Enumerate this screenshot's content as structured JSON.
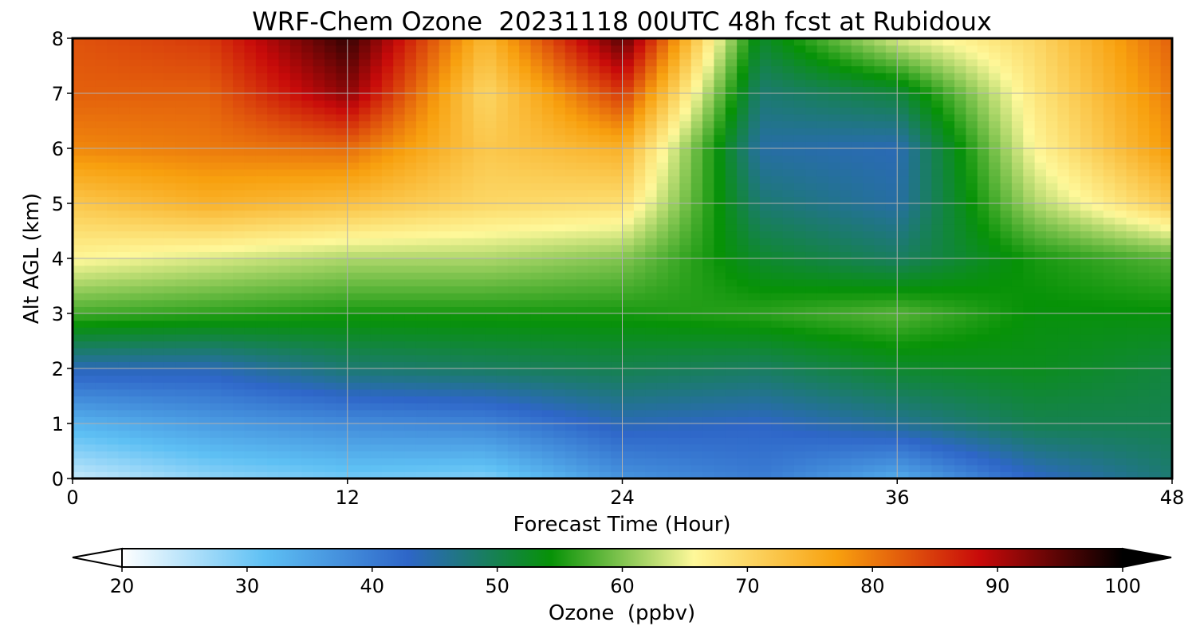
{
  "chart_data": {
    "type": "heatmap",
    "title": "WRF-Chem Ozone  20231118 00UTC 48h fcst at Rubidoux",
    "xlabel": "Forecast Time (Hour)",
    "ylabel": "Alt AGL (km)",
    "xlim": [
      0,
      48
    ],
    "ylim": [
      0,
      8
    ],
    "xticks": [
      0,
      12,
      24,
      36,
      48
    ],
    "yticks": [
      0,
      1,
      2,
      3,
      4,
      5,
      6,
      7,
      8
    ],
    "grid": true,
    "x": [
      0,
      6,
      12,
      18,
      24,
      30,
      36,
      42,
      48
    ],
    "y": [
      0,
      1,
      2,
      3,
      4,
      5,
      6,
      7,
      8
    ],
    "z": [
      [
        24,
        28,
        30,
        29,
        37,
        40,
        34,
        43,
        48
      ],
      [
        33,
        36,
        38,
        39,
        44,
        43,
        46,
        50,
        50
      ],
      [
        44,
        44,
        48,
        49,
        50,
        49,
        52,
        53,
        51
      ],
      [
        57,
        56,
        55,
        55,
        55,
        56,
        58,
        54,
        54
      ],
      [
        66,
        64,
        62,
        62,
        60,
        52,
        49,
        55,
        58
      ],
      [
        72,
        75,
        73,
        70,
        69,
        48,
        45,
        62,
        72
      ],
      [
        79,
        80,
        81,
        72,
        75,
        45,
        44,
        66,
        78
      ],
      [
        82,
        82,
        92,
        70,
        85,
        48,
        51,
        68,
        80
      ],
      [
        83,
        85,
        97,
        74,
        95,
        52,
        64,
        70,
        82
      ]
    ],
    "colorbar": {
      "label": "Ozone  (ppbv)",
      "min": 20,
      "max": 100,
      "ticks": [
        20,
        30,
        40,
        50,
        60,
        70,
        80,
        90,
        100
      ],
      "extend": "both",
      "colors": [
        "#ffffff",
        "#5ec0f4",
        "#2e66c8",
        "#079207",
        "#fef89a",
        "#f8a00e",
        "#c80a0a",
        "#000000"
      ]
    }
  }
}
